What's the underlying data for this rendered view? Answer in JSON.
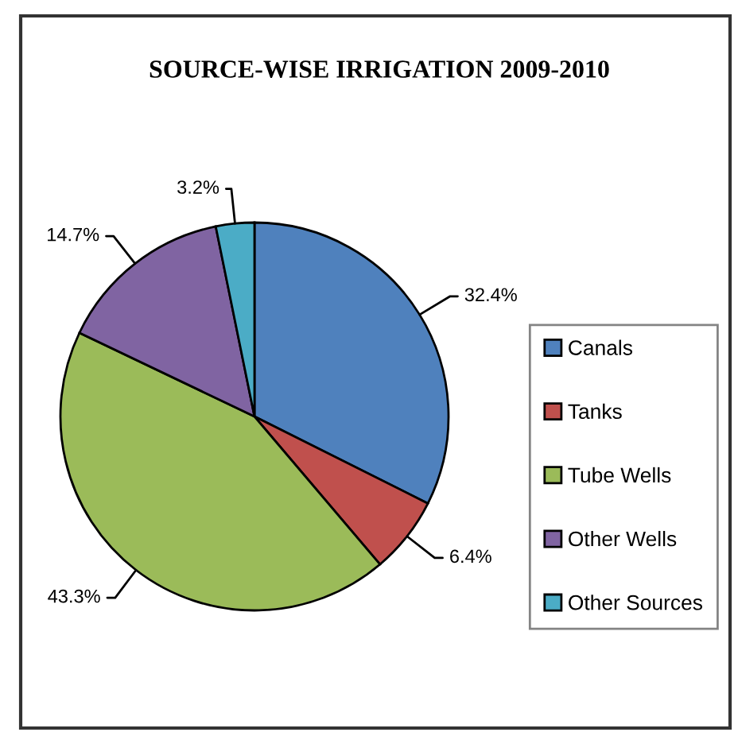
{
  "chart_data": {
    "type": "pie",
    "title": "SOURCE-WISE IRRIGATION 2009-2010",
    "categories": [
      "Canals",
      "Tanks",
      "Tube Wells",
      "Other Wells",
      "Other Sources"
    ],
    "values": [
      32.4,
      6.4,
      43.3,
      14.7,
      3.2
    ],
    "colors": [
      "#4f81bd",
      "#c0504d",
      "#9bbb59",
      "#8064a2",
      "#4bacc6"
    ],
    "value_labels": [
      "32.4%",
      "6.4%",
      "43.3%",
      "14.7%",
      "3.2%"
    ],
    "legend": "right"
  }
}
